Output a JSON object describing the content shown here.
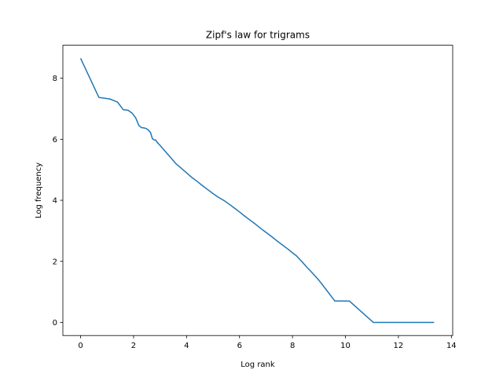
{
  "chart_data": {
    "type": "line",
    "title": "Zipf's law for trigrams",
    "xlabel": "Log rank",
    "ylabel": "Log frequency",
    "xlim": [
      -0.67,
      14.05
    ],
    "ylim": [
      -0.43,
      9.08
    ],
    "xticks": [
      0,
      2,
      4,
      6,
      8,
      10,
      12,
      14
    ],
    "yticks": [
      0,
      2,
      4,
      6,
      8
    ],
    "grid": false,
    "line_color": "#1f77b4",
    "series": [
      {
        "x": [
          0,
          0.69,
          1.1,
          1.39,
          1.61,
          1.79,
          1.95,
          2.08,
          2.2,
          2.3,
          2.4,
          2.48,
          2.56,
          2.64,
          2.71,
          2.77,
          2.83,
          2.89,
          3.0,
          3.2,
          3.4,
          3.6,
          3.8,
          4.0,
          4.2,
          4.4,
          4.6,
          4.8,
          5.0,
          5.2,
          5.4,
          5.6,
          5.8,
          6.0,
          6.2,
          6.4,
          6.6,
          6.8,
          7.0,
          7.2,
          7.4,
          7.6,
          7.8,
          8.0,
          8.15,
          8.4,
          8.55,
          8.75,
          8.98,
          9.25,
          9.6,
          10.15,
          11.05,
          11.05,
          13.35
        ],
        "y": [
          8.65,
          7.37,
          7.32,
          7.22,
          6.97,
          6.95,
          6.85,
          6.7,
          6.45,
          6.38,
          6.37,
          6.35,
          6.3,
          6.22,
          6.02,
          5.98,
          5.98,
          5.9,
          5.8,
          5.6,
          5.4,
          5.2,
          5.05,
          4.9,
          4.75,
          4.62,
          4.48,
          4.35,
          4.22,
          4.1,
          4.0,
          3.88,
          3.75,
          3.62,
          3.48,
          3.35,
          3.22,
          3.08,
          2.95,
          2.82,
          2.68,
          2.55,
          2.42,
          2.28,
          2.18,
          1.95,
          1.8,
          1.62,
          1.4,
          1.1,
          0.7,
          0.7,
          0.0,
          0.0,
          0.0
        ]
      }
    ]
  }
}
